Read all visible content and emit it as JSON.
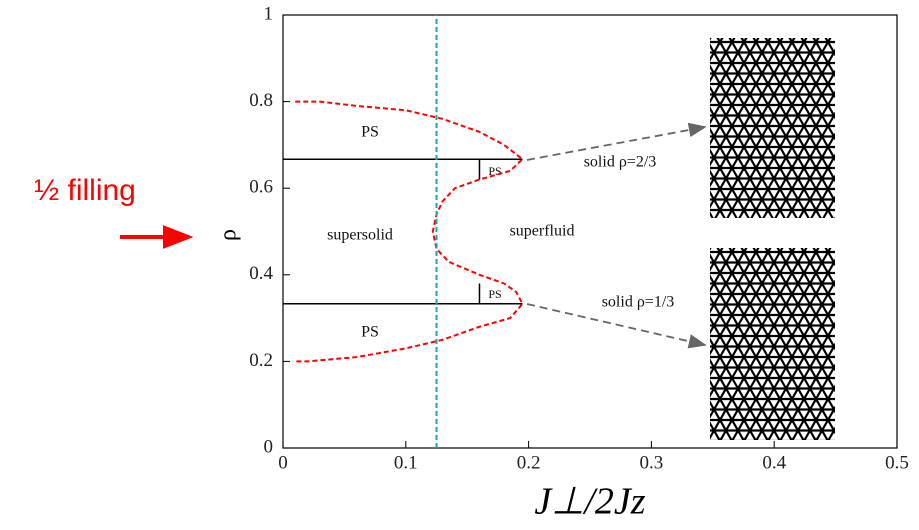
{
  "chart_data": {
    "type": "line",
    "xlabel": "J⊥/2Jz",
    "ylabel": "ρ",
    "xlim": [
      0,
      0.5
    ],
    "ylim": [
      0,
      1
    ],
    "xticks": [
      0,
      0.1,
      0.2,
      0.3,
      0.4,
      0.5
    ],
    "yticks": [
      0,
      0.2,
      0.4,
      0.6,
      0.8,
      1
    ],
    "series": [
      {
        "color": "#ff0000",
        "style": "dashed",
        "x": [
          0.01,
          0.03,
          0.06,
          0.1,
          0.13,
          0.16,
          0.18,
          0.195,
          0.185,
          0.16,
          0.14,
          0.13,
          0.125,
          0.122,
          0.125,
          0.135,
          0.16,
          0.18,
          0.19,
          0.195,
          0.185,
          0.16,
          0.13,
          0.1,
          0.06,
          0.02,
          0.01
        ],
        "values": [
          0.8,
          0.8,
          0.79,
          0.78,
          0.76,
          0.73,
          0.7,
          0.667,
          0.64,
          0.62,
          0.6,
          0.57,
          0.54,
          0.5,
          0.46,
          0.43,
          0.4,
          0.38,
          0.36,
          0.333,
          0.3,
          0.28,
          0.25,
          0.23,
          0.21,
          0.2,
          0.2
        ]
      },
      {
        "color": "#000000",
        "style": "solid",
        "x": [
          0,
          0.195
        ],
        "values": [
          0.667,
          0.667
        ]
      },
      {
        "color": "#000000",
        "style": "solid",
        "x": [
          0,
          0.195
        ],
        "values": [
          0.333,
          0.333
        ]
      },
      {
        "color": "#000000",
        "style": "solid",
        "x": [
          0.16,
          0.16
        ],
        "values": [
          0.667,
          0.62
        ]
      },
      {
        "color": "#000000",
        "style": "solid",
        "x": [
          0.16,
          0.16
        ],
        "values": [
          0.333,
          0.38
        ]
      },
      {
        "color": "#1aa7a7",
        "style": "dashed",
        "x": [
          0.125,
          0.125
        ],
        "values": [
          0,
          1
        ]
      }
    ],
    "annotations": [
      "PS",
      "PS",
      "PS",
      "PS",
      "supersolid",
      "superfluid",
      "solid ρ=2/3",
      "solid ρ=1/3",
      "½ filling"
    ]
  }
}
